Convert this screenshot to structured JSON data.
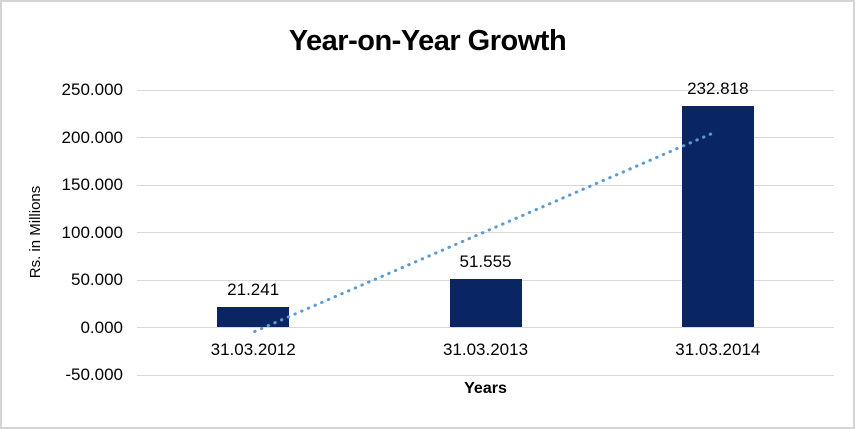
{
  "chart_data": {
    "type": "bar",
    "title": "Year-on-Year Growth",
    "categories": [
      "31.03.2012",
      "31.03.2013",
      "31.03.2014"
    ],
    "values": [
      21.241,
      51.555,
      232.818
    ],
    "data_labels": [
      "21.241",
      "51.555",
      "232.818"
    ],
    "xlabel": "Years",
    "ylabel": "Rs. in Millions",
    "ylim": [
      -50,
      250
    ],
    "ytick_values": [
      250,
      200,
      150,
      100,
      50,
      0,
      -50
    ],
    "ytick_labels": [
      "250.000",
      "200.000",
      "150.000",
      "100.000",
      "50.000",
      "0.000",
      "-50.000"
    ],
    "grid": true,
    "legend": "none",
    "bar_color": "#0a2563",
    "trendline": {
      "type": "linear",
      "style": "dotted",
      "color": "#5b9bd5",
      "start_value": -4.2,
      "end_value": 206
    }
  },
  "colors": {
    "background": "#ffffff",
    "border": "#d5d5d5",
    "gridline": "#d9d9d9",
    "text": "#000000"
  }
}
